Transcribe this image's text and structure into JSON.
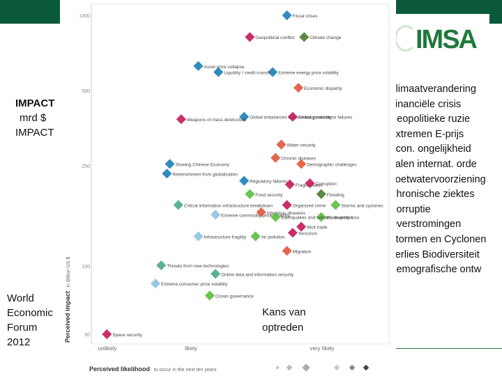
{
  "left": {
    "impact_title": "IMPACT",
    "impact_unit": "mrd $",
    "impact_sub": "IMPACT",
    "source_lines": [
      "World",
      "Economic",
      "Forum",
      "2012"
    ]
  },
  "logo": {
    "text": "IMSA"
  },
  "legend_list": [
    "Klimaatverandering",
    "Financiële crisis",
    "Geopolitieke ruzie",
    "Extremen E-prijs",
    "Econ. ongelijkheid",
    "Falen internat. orde",
    "Zoetwatervoorziening",
    "Chronische ziektes",
    "Corruptie",
    "Overstromingen",
    "Stormen en Cyclonen",
    "Verlies Biodiversiteit",
    "Demografische ontw"
  ],
  "kans_label": "Kans van optreden",
  "chart_data": {
    "type": "scatter",
    "ylabel": "Perceived impact",
    "ylabel_unit": "in Billion US $",
    "xlabel": "Perceived likelihood",
    "xlabel_suffix": "to occur in the next ten years",
    "y_ticks": [
      "1000",
      "500",
      "250",
      "100",
      "50"
    ],
    "x_ticks": [
      "unlikely",
      "likely",
      "very likely"
    ],
    "colors": {
      "economic": "#1a7fb5",
      "environmental": "#5bbd3e",
      "geopolitical": "#c2185b",
      "societal": "#e0573c",
      "technological": "#4aa88a",
      "economic_light": "#8cc2dd",
      "environmental_dark": "#4b7a30"
    },
    "points": [
      {
        "label": "Fiscal crises",
        "x": 0.66,
        "y": 4.1,
        "cat": "economic"
      },
      {
        "label": "Geopolitical conflict",
        "x": 0.53,
        "y": 3.92,
        "cat": "geopolitical"
      },
      {
        "label": "Climate change",
        "x": 0.72,
        "y": 3.92,
        "cat": "environmental_dark"
      },
      {
        "label": "Asset price collapse",
        "x": 0.35,
        "y": 3.68,
        "cat": "economic"
      },
      {
        "label": "Extreme energy price volatility",
        "x": 0.61,
        "y": 3.63,
        "cat": "economic"
      },
      {
        "label": "Liquidity / credit crunch",
        "x": 0.42,
        "y": 3.63,
        "cat": "economic"
      },
      {
        "label": "Economic disparity",
        "x": 0.7,
        "y": 3.5,
        "cat": "societal"
      },
      {
        "label": "Global imbalances and currency volatility",
        "x": 0.51,
        "y": 3.26,
        "cat": "economic"
      },
      {
        "label": "Weapons of mass destruction",
        "x": 0.29,
        "y": 3.24,
        "cat": "geopolitical"
      },
      {
        "label": "Global governance failures",
        "x": 0.68,
        "y": 3.26,
        "cat": "geopolitical"
      },
      {
        "label": "Water security",
        "x": 0.64,
        "y": 3.03,
        "cat": "societal"
      },
      {
        "label": "Chronic diseases",
        "x": 0.62,
        "y": 2.92,
        "cat": "societal"
      },
      {
        "label": "Slowing Chinese Economy",
        "x": 0.25,
        "y": 2.87,
        "cat": "economic"
      },
      {
        "label": "Retrenchment from globalization",
        "x": 0.24,
        "y": 2.79,
        "cat": "economic"
      },
      {
        "label": "Demographic challenges",
        "x": 0.71,
        "y": 2.87,
        "cat": "societal"
      },
      {
        "label": "Regulatory failures",
        "x": 0.51,
        "y": 2.73,
        "cat": "economic"
      },
      {
        "label": "Fragile states",
        "x": 0.67,
        "y": 2.7,
        "cat": "geopolitical"
      },
      {
        "label": "Corruption",
        "x": 0.74,
        "y": 2.71,
        "cat": "geopolitical"
      },
      {
        "label": "Food security",
        "x": 0.53,
        "y": 2.62,
        "cat": "environmental"
      },
      {
        "label": "Flooding",
        "x": 0.78,
        "y": 2.62,
        "cat": "environmental_dark"
      },
      {
        "label": "Storms and cyclones",
        "x": 0.83,
        "y": 2.53,
        "cat": "environmental"
      },
      {
        "label": "Critical information infrastructure breakdown",
        "x": 0.28,
        "y": 2.53,
        "cat": "technological"
      },
      {
        "label": "Organized crime",
        "x": 0.66,
        "y": 2.53,
        "cat": "geopolitical"
      },
      {
        "label": "Biodiversity loss",
        "x": 0.78,
        "y": 2.43,
        "cat": "environmental"
      },
      {
        "label": "Extreme commodity price volatility",
        "x": 0.41,
        "y": 2.45,
        "cat": "economic_light"
      },
      {
        "label": "Infectious diseases",
        "x": 0.57,
        "y": 2.47,
        "cat": "societal"
      },
      {
        "label": "Earthquakes and volcanic eruptions",
        "x": 0.62,
        "y": 2.43,
        "cat": "environmental"
      },
      {
        "label": "Illicit trade",
        "x": 0.71,
        "y": 2.35,
        "cat": "geopolitical"
      },
      {
        "label": "Terrorism",
        "x": 0.68,
        "y": 2.3,
        "cat": "geopolitical"
      },
      {
        "label": "Infrastructure fragility",
        "x": 0.35,
        "y": 2.27,
        "cat": "economic_light"
      },
      {
        "label": "Air pollution",
        "x": 0.55,
        "y": 2.27,
        "cat": "environmental"
      },
      {
        "label": "Migration",
        "x": 0.66,
        "y": 2.15,
        "cat": "societal"
      },
      {
        "label": "Threats from new technologies",
        "x": 0.22,
        "y": 2.03,
        "cat": "technological"
      },
      {
        "label": "Online data and information security",
        "x": 0.41,
        "y": 1.96,
        "cat": "technological"
      },
      {
        "label": "Extreme consumer price volatility",
        "x": 0.2,
        "y": 1.88,
        "cat": "economic_light"
      },
      {
        "label": "Ocean governance",
        "x": 0.39,
        "y": 1.78,
        "cat": "environmental"
      },
      {
        "label": "Space security",
        "x": 0.03,
        "y": 1.46,
        "cat": "geopolitical"
      }
    ]
  }
}
